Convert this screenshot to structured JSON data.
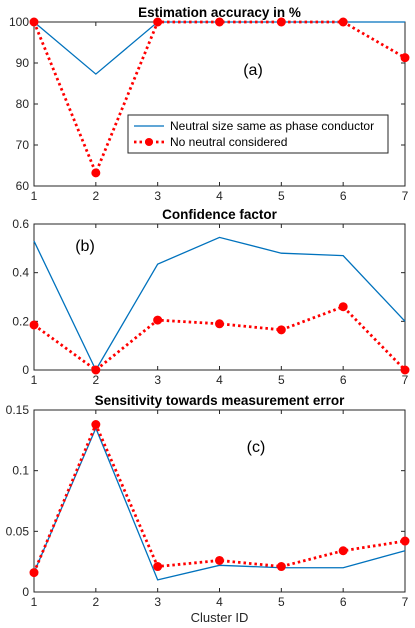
{
  "figure": {
    "colors": {
      "series1": "#0072BD",
      "series2": "#FF0000",
      "axis": "#262626"
    }
  },
  "chart_data": [
    {
      "type": "line",
      "title": "Estimation accuracy in %",
      "panel_label": "(a)",
      "xlabel": "",
      "ylabel": "",
      "x": [
        1,
        2,
        3,
        4,
        5,
        6,
        7
      ],
      "xlim": [
        1,
        7
      ],
      "ylim": [
        60,
        100
      ],
      "xticks": [
        "1",
        "2",
        "3",
        "4",
        "5",
        "6",
        "7"
      ],
      "yticks": [
        60,
        70,
        80,
        90,
        100
      ],
      "ytick_labels": [
        "60",
        "70",
        "80",
        "90",
        "100"
      ],
      "grid": false,
      "legend": "center-right",
      "series": [
        {
          "name": "Neutral size same as phase conductor",
          "values": [
            100,
            87.3,
            100,
            100,
            100,
            100,
            100
          ],
          "style": "solid"
        },
        {
          "name": "No neutral considered",
          "values": [
            100,
            63.2,
            100,
            100,
            100,
            100,
            91.3
          ],
          "style": "dotted-markers"
        }
      ]
    },
    {
      "type": "line",
      "title": "Confidence factor",
      "panel_label": "(b)",
      "xlabel": "",
      "ylabel": "",
      "x": [
        1,
        2,
        3,
        4,
        5,
        6,
        7
      ],
      "xlim": [
        1,
        7
      ],
      "ylim": [
        0,
        0.6
      ],
      "xticks": [
        "1",
        "2",
        "3",
        "4",
        "5",
        "6",
        "7"
      ],
      "yticks": [
        0,
        0.2,
        0.4,
        0.6
      ],
      "ytick_labels": [
        "0",
        "0.2",
        "0.4",
        "0.6"
      ],
      "grid": false,
      "series": [
        {
          "values": [
            0.53,
            0.0,
            0.435,
            0.545,
            0.48,
            0.47,
            0.2
          ],
          "style": "solid"
        },
        {
          "values": [
            0.185,
            0.0,
            0.205,
            0.19,
            0.165,
            0.26,
            0.0
          ],
          "style": "dotted-markers"
        }
      ]
    },
    {
      "type": "line",
      "title": "Sensitivity towards measurement error",
      "panel_label": "(c)",
      "xlabel": "Cluster ID",
      "ylabel": "",
      "x": [
        1,
        2,
        3,
        4,
        5,
        6,
        7
      ],
      "xlim": [
        1,
        7
      ],
      "ylim": [
        0,
        0.15
      ],
      "xticks": [
        "1",
        "2",
        "3",
        "4",
        "5",
        "6",
        "7"
      ],
      "yticks": [
        0,
        0.05,
        0.1,
        0.15
      ],
      "ytick_labels": [
        "0",
        "0.05",
        "0.1",
        "0.15"
      ],
      "grid": false,
      "series": [
        {
          "values": [
            0.016,
            0.135,
            0.01,
            0.022,
            0.02,
            0.02,
            0.034
          ],
          "style": "solid"
        },
        {
          "values": [
            0.016,
            0.138,
            0.021,
            0.026,
            0.021,
            0.034,
            0.042
          ],
          "style": "dotted-markers"
        }
      ]
    }
  ]
}
